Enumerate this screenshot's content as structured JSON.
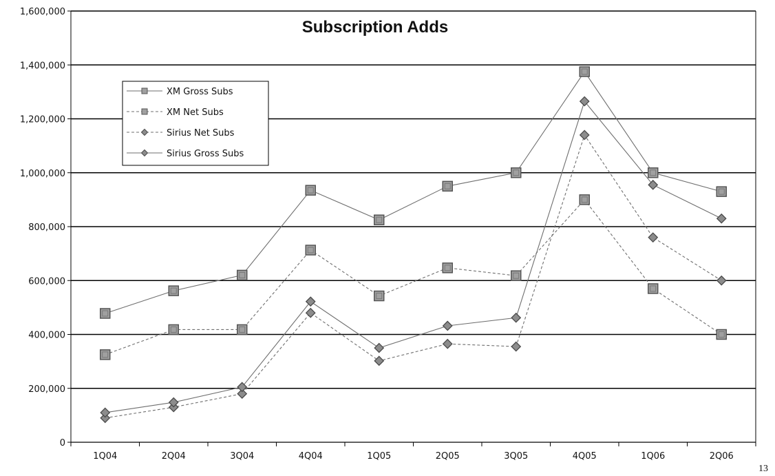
{
  "chart_data": {
    "type": "line",
    "title": "Subscription Adds",
    "xlabel": "",
    "ylabel": "",
    "categories": [
      "1Q04",
      "2Q04",
      "3Q04",
      "4Q04",
      "1Q05",
      "2Q05",
      "3Q05",
      "4Q05",
      "1Q06",
      "2Q06"
    ],
    "ylim": [
      0,
      1600000
    ],
    "yticks": [
      0,
      200000,
      400000,
      600000,
      800000,
      1000000,
      1200000,
      1400000,
      1600000
    ],
    "ytick_labels": [
      "0",
      "200,000",
      "400,000",
      "600,000",
      "800,000",
      "1,000,000",
      "1,200,000",
      "1,400,000",
      "1,600,000"
    ],
    "grid": "horizontal",
    "legend_position": "top-left",
    "series": [
      {
        "name": "XM Gross Subs",
        "marker": "square",
        "line_style": "solid",
        "values": [
          478000,
          562000,
          620000,
          935000,
          825000,
          950000,
          1000000,
          1375000,
          1000000,
          930000
        ]
      },
      {
        "name": "XM Net Subs",
        "marker": "square",
        "line_style": "dashed",
        "values": [
          325000,
          418000,
          418000,
          713000,
          543000,
          647000,
          618000,
          900000,
          570000,
          400000
        ]
      },
      {
        "name": "Sirius Net Subs",
        "marker": "diamond",
        "line_style": "dashed",
        "values": [
          90000,
          130000,
          180000,
          480000,
          302000,
          365000,
          355000,
          1140000,
          760000,
          600000
        ]
      },
      {
        "name": "Sirius Gross Subs",
        "marker": "diamond",
        "line_style": "solid",
        "values": [
          110000,
          148000,
          205000,
          522000,
          350000,
          432000,
          462000,
          1265000,
          955000,
          830000
        ]
      }
    ]
  },
  "page_number": "13",
  "colors": {
    "line": "#6e6e6e",
    "square_fill": "#a0a0a0",
    "square_stroke": "#555555",
    "diamond_fill": "#8c8c8c",
    "diamond_stroke": "#4a4a4a",
    "grid": "#000000"
  }
}
